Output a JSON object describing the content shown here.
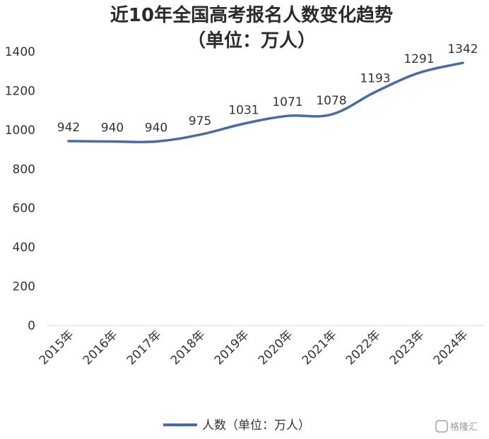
{
  "chart_data": {
    "type": "line",
    "title": "近10年全国高考报名人数变化趋势",
    "subtitle": "（单位：万人）",
    "categories": [
      "2015年",
      "2016年",
      "2017年",
      "2018年",
      "2019年",
      "2020年",
      "2021年",
      "2022年",
      "2023年",
      "2024年"
    ],
    "series": [
      {
        "name": "人数（单位：万人）",
        "values": [
          942,
          940,
          940,
          975,
          1031,
          1071,
          1078,
          1193,
          1291,
          1342
        ],
        "color": "#4a6aa5"
      }
    ],
    "ylim": [
      0,
      1400
    ],
    "yticks": [
      0,
      200,
      400,
      600,
      800,
      1000,
      1200,
      1400
    ],
    "grid": false,
    "legend": "bottom"
  },
  "watermark": "格隆汇"
}
